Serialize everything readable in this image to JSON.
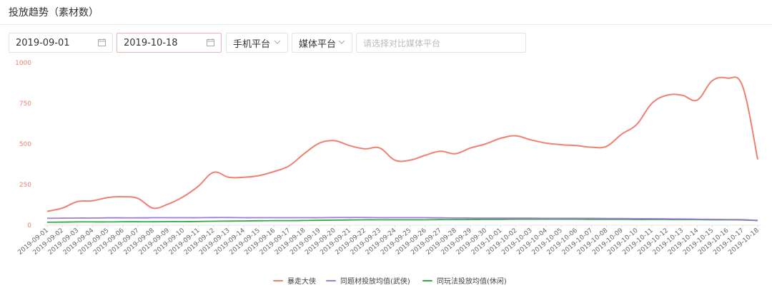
{
  "header": {
    "title": "投放趋势（素材数）"
  },
  "filters": {
    "start_date": "2019-09-01",
    "end_date": "2019-10-18",
    "platform_select": "手机平台",
    "media_select": "媒体平台",
    "compare_placeholder": "请选择对比媒体平台"
  },
  "colors": {
    "series1": "#f08070",
    "series2": "#9b7fd6",
    "series3": "#33aa44",
    "axis_text": "#f08070"
  },
  "chart_data": {
    "type": "line",
    "title": "",
    "xlabel": "",
    "ylabel": "",
    "ylim": [
      0,
      1000
    ],
    "yticks": [
      0,
      250,
      500,
      750,
      1000
    ],
    "grid": false,
    "legend": "bottom-center",
    "x": [
      "2019-09-01",
      "2019-09-02",
      "2019-09-03",
      "2019-09-04",
      "2019-09-05",
      "2019-09-06",
      "2019-09-07",
      "2019-09-08",
      "2019-09-09",
      "2019-09-10",
      "2019-09-11",
      "2019-09-12",
      "2019-09-13",
      "2019-09-14",
      "2019-09-15",
      "2019-09-16",
      "2019-09-17",
      "2019-09-18",
      "2019-09-19",
      "2019-09-20",
      "2019-09-21",
      "2019-09-22",
      "2019-09-23",
      "2019-09-24",
      "2019-09-25",
      "2019-09-26",
      "2019-09-27",
      "2019-09-28",
      "2019-09-29",
      "2019-09-30",
      "2019-10-01",
      "2019-10-02",
      "2019-10-03",
      "2019-10-04",
      "2019-10-05",
      "2019-10-06",
      "2019-10-07",
      "2019-10-08",
      "2019-10-09",
      "2019-10-10",
      "2019-10-11",
      "2019-10-12",
      "2019-10-13",
      "2019-10-14",
      "2019-10-15",
      "2019-10-16",
      "2019-10-17",
      "2019-10-18"
    ],
    "x_tick_labels": [
      "2019-09-01",
      "2019-09-02",
      "2019-09-03",
      "2019-09-04",
      "2019-09-05",
      "2019-09-06",
      "2019-09-07",
      "2019-09-08",
      "2019-09-09",
      "2019-09-10",
      "2019-09-11",
      "2019-09-12",
      "2019-09-13",
      "2019-09-14",
      "2019-09-15",
      "2019-09-16",
      "2019-09-17",
      "2019-09-18",
      "2019-09-19",
      "2019-09-20",
      "2019-09-21",
      "2019-09-22",
      "2019-09-23",
      "2019-09-24",
      "2019-09-25",
      "2019-09-26",
      "2019-09-27",
      "2019-09-28",
      "2019-09-29",
      "2019-09-30",
      "2019-10-01",
      "2019-10-02",
      "2019-10-03",
      "2019-10-04",
      "2019-10-05",
      "2019-10-06",
      "2019-10-07",
      "2019-10-08",
      "2019-10-09",
      "2019-10-10",
      "2019-10-11",
      "2019-10-12",
      "2019-10-13",
      "2019-10-14",
      "2019-10-15",
      "2019-10-16",
      "2019-10-17",
      "2019-10-18"
    ],
    "series": [
      {
        "name": "暴走大侠",
        "color": "#f08070",
        "values": [
          85,
          105,
          145,
          150,
          170,
          175,
          165,
          105,
          130,
          175,
          240,
          325,
          295,
          295,
          305,
          330,
          365,
          440,
          505,
          520,
          490,
          470,
          475,
          400,
          400,
          430,
          455,
          440,
          475,
          500,
          535,
          550,
          525,
          505,
          495,
          490,
          480,
          485,
          560,
          620,
          750,
          800,
          800,
          770,
          890,
          905,
          855,
          405
        ]
      },
      {
        "name": "同题材投放均值(武侠)",
        "color": "#9b7fd6",
        "values": [
          42,
          43,
          44,
          44,
          45,
          45,
          45,
          46,
          46,
          46,
          46,
          47,
          47,
          46,
          46,
          46,
          46,
          46,
          46,
          47,
          47,
          47,
          46,
          46,
          46,
          46,
          45,
          44,
          44,
          43,
          43,
          43,
          43,
          42,
          42,
          42,
          42,
          41,
          41,
          40,
          40,
          39,
          38,
          37,
          36,
          35,
          34,
          30
        ]
      },
      {
        "name": "同玩法投放均值(休闲)",
        "color": "#33aa44",
        "values": [
          18,
          19,
          20,
          20,
          20,
          21,
          21,
          21,
          22,
          22,
          23,
          24,
          25,
          26,
          27,
          28,
          28,
          29,
          30,
          31,
          32,
          33,
          33,
          33,
          33,
          33,
          34,
          34,
          35,
          36,
          36,
          37,
          37,
          37,
          37,
          37,
          36,
          36,
          36,
          35,
          35,
          35,
          34,
          34,
          33,
          33,
          32,
          28
        ]
      }
    ]
  }
}
